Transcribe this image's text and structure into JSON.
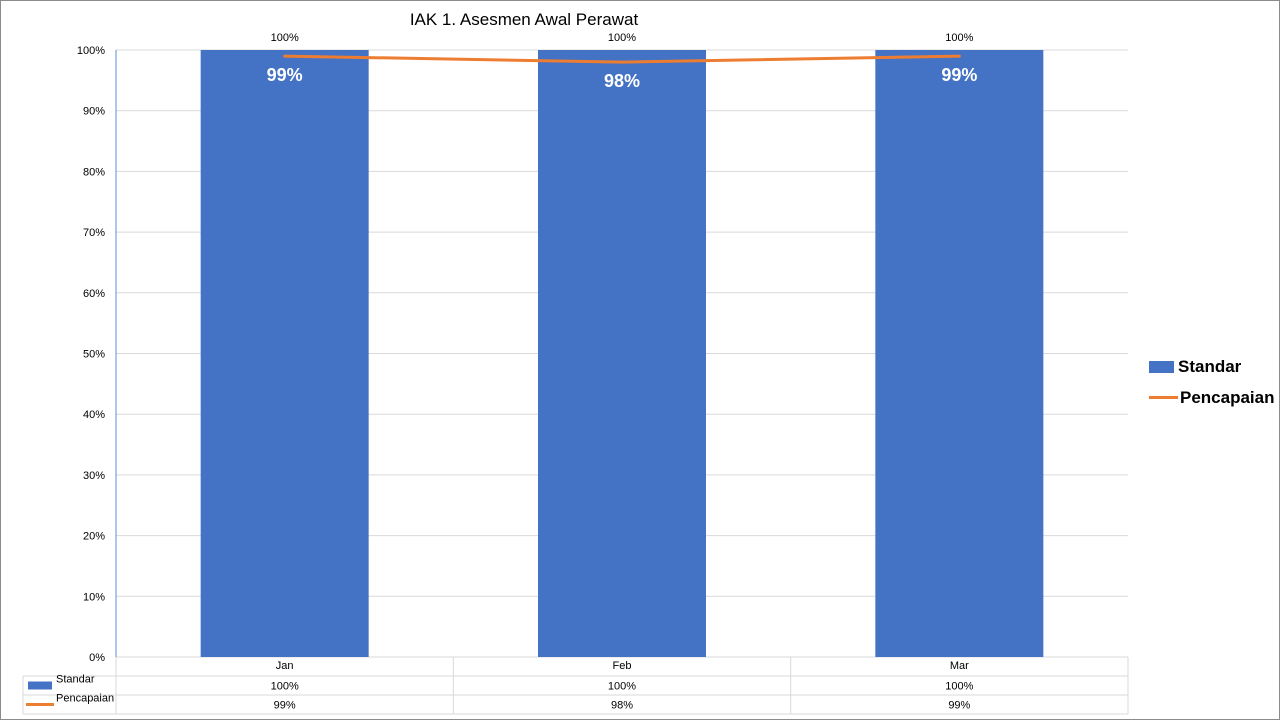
{
  "chart_data": {
    "type": "bar",
    "title": "IAK 1. Asesmen Awal Perawat",
    "categories": [
      "Jan",
      "Feb",
      "Mar"
    ],
    "ylim": [
      0,
      100
    ],
    "yticks": [
      "0%",
      "10%",
      "20%",
      "30%",
      "40%",
      "50%",
      "60%",
      "70%",
      "80%",
      "90%",
      "100%"
    ],
    "grid": true,
    "legend_position": "right",
    "data_table": true,
    "series": [
      {
        "name": "Standar",
        "kind": "bar",
        "color": "#4472c4",
        "values": [
          100,
          100,
          100
        ],
        "labels": [
          "100%",
          "100%",
          "100%"
        ]
      },
      {
        "name": "Pencapaian",
        "kind": "line",
        "color": "#ed7d31",
        "values": [
          99,
          98,
          99
        ],
        "labels": [
          "99%",
          "98%",
          "99%"
        ]
      }
    ]
  }
}
